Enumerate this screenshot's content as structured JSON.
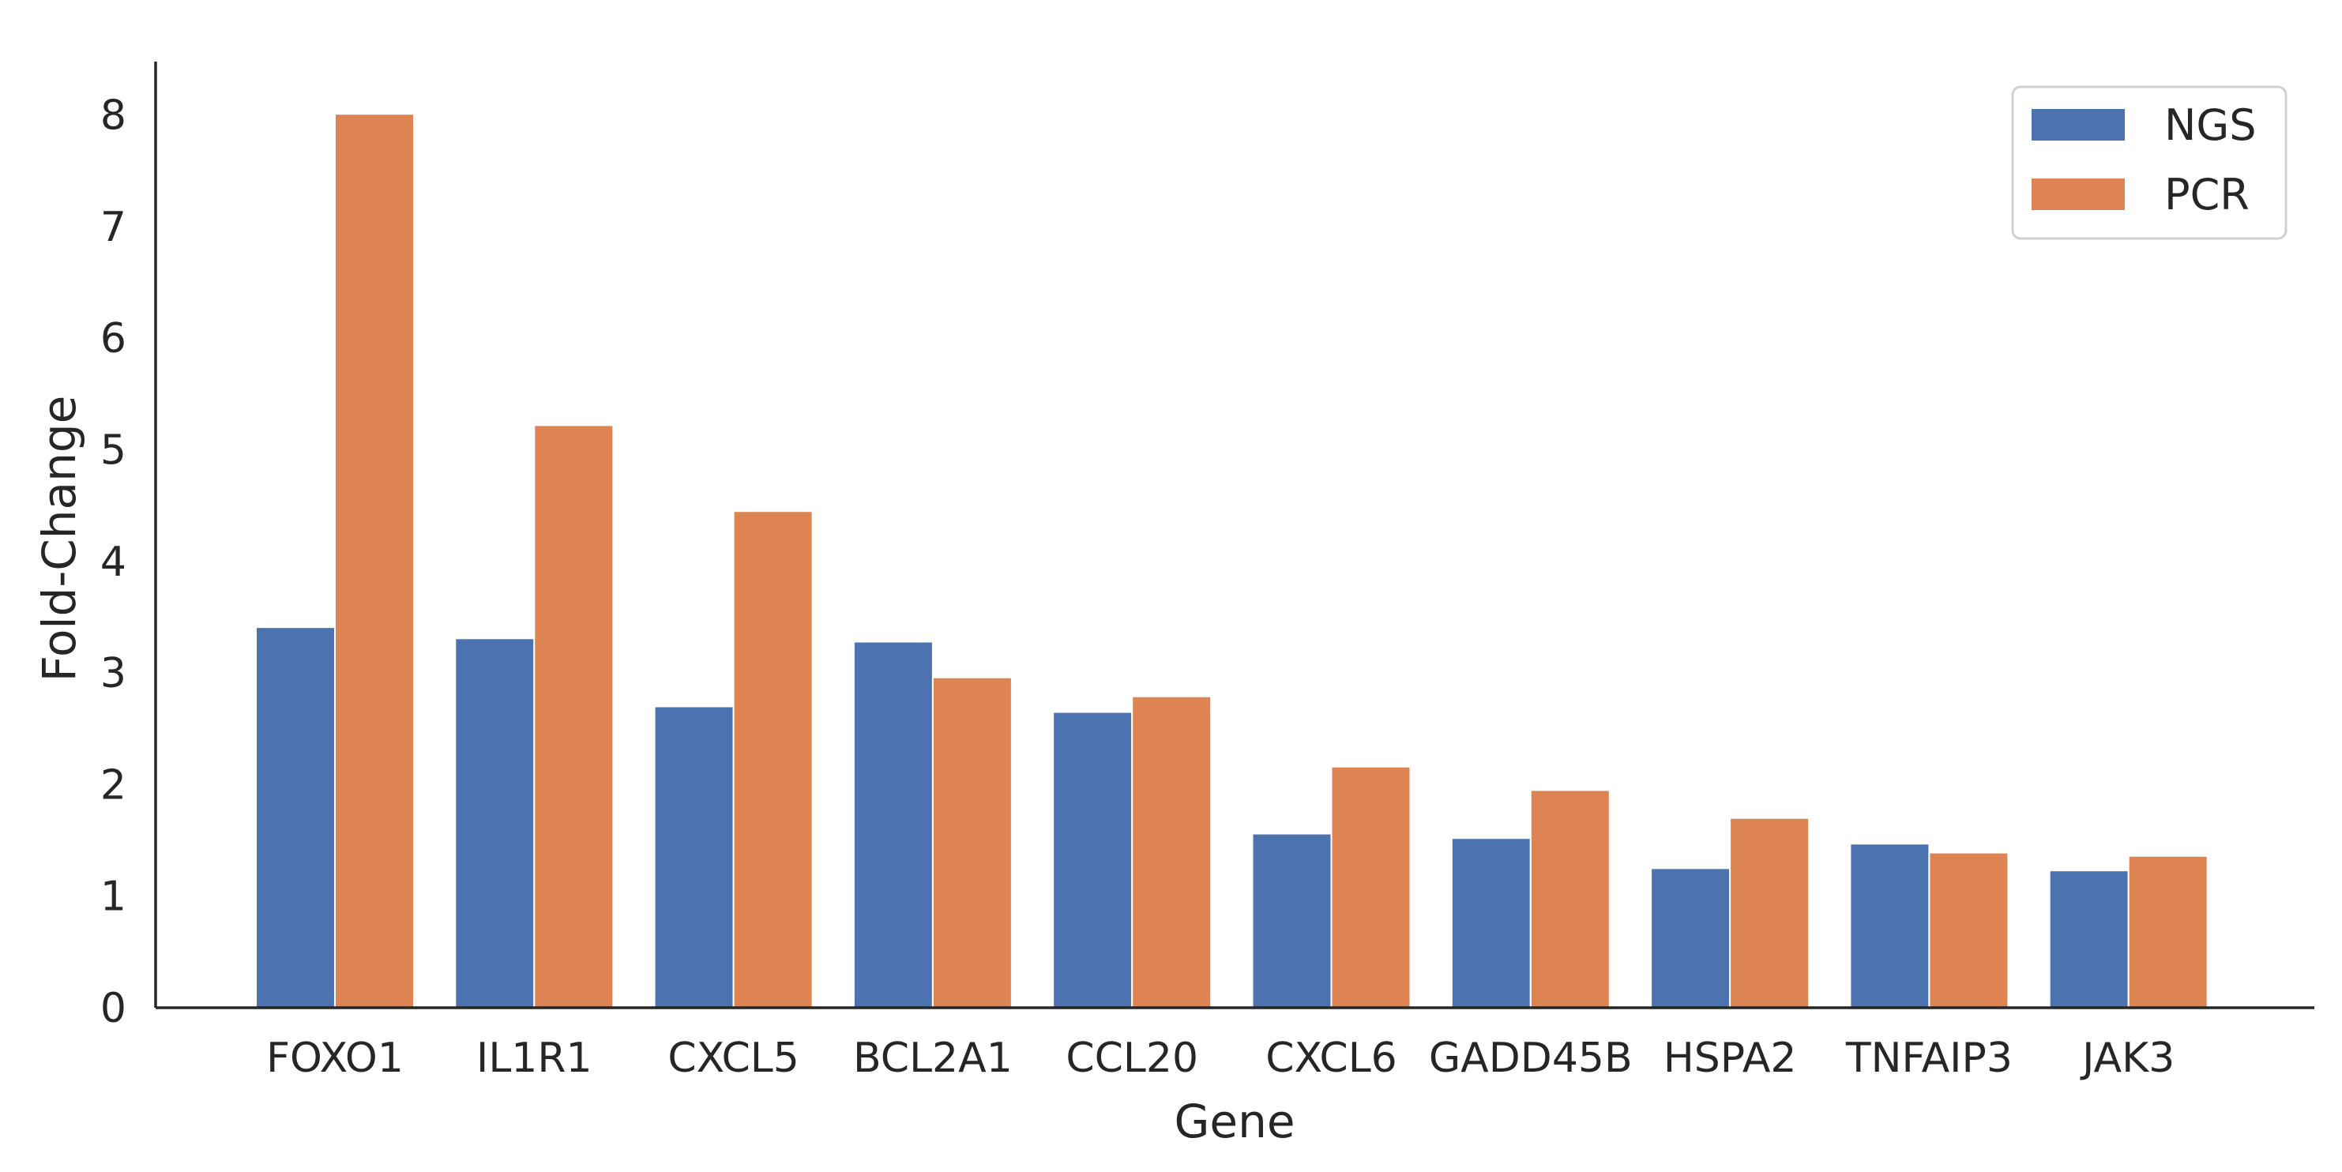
{
  "chart_data": {
    "type": "bar",
    "title": "",
    "xlabel": "Gene",
    "ylabel": "Fold-Change",
    "ylim": [
      0,
      8.45
    ],
    "yticks": [
      0,
      1,
      2,
      3,
      4,
      5,
      6,
      7,
      8
    ],
    "grid": false,
    "legend_position": "top-right",
    "categories": [
      "FOXO1",
      "IL1R1",
      "CXCL5",
      "BCL2A1",
      "CCL20",
      "CXCL6",
      "GADD45B",
      "HSPA2",
      "TNFAIP3",
      "JAK3"
    ],
    "series": [
      {
        "name": "NGS",
        "color": "#4C72B0",
        "values": [
          3.41,
          3.31,
          2.7,
          3.28,
          2.65,
          1.56,
          1.52,
          1.25,
          1.47,
          1.23
        ]
      },
      {
        "name": "PCR",
        "color": "#DD8452",
        "values": [
          8.01,
          5.22,
          4.45,
          2.96,
          2.79,
          2.16,
          1.95,
          1.7,
          1.39,
          1.36
        ]
      }
    ]
  }
}
